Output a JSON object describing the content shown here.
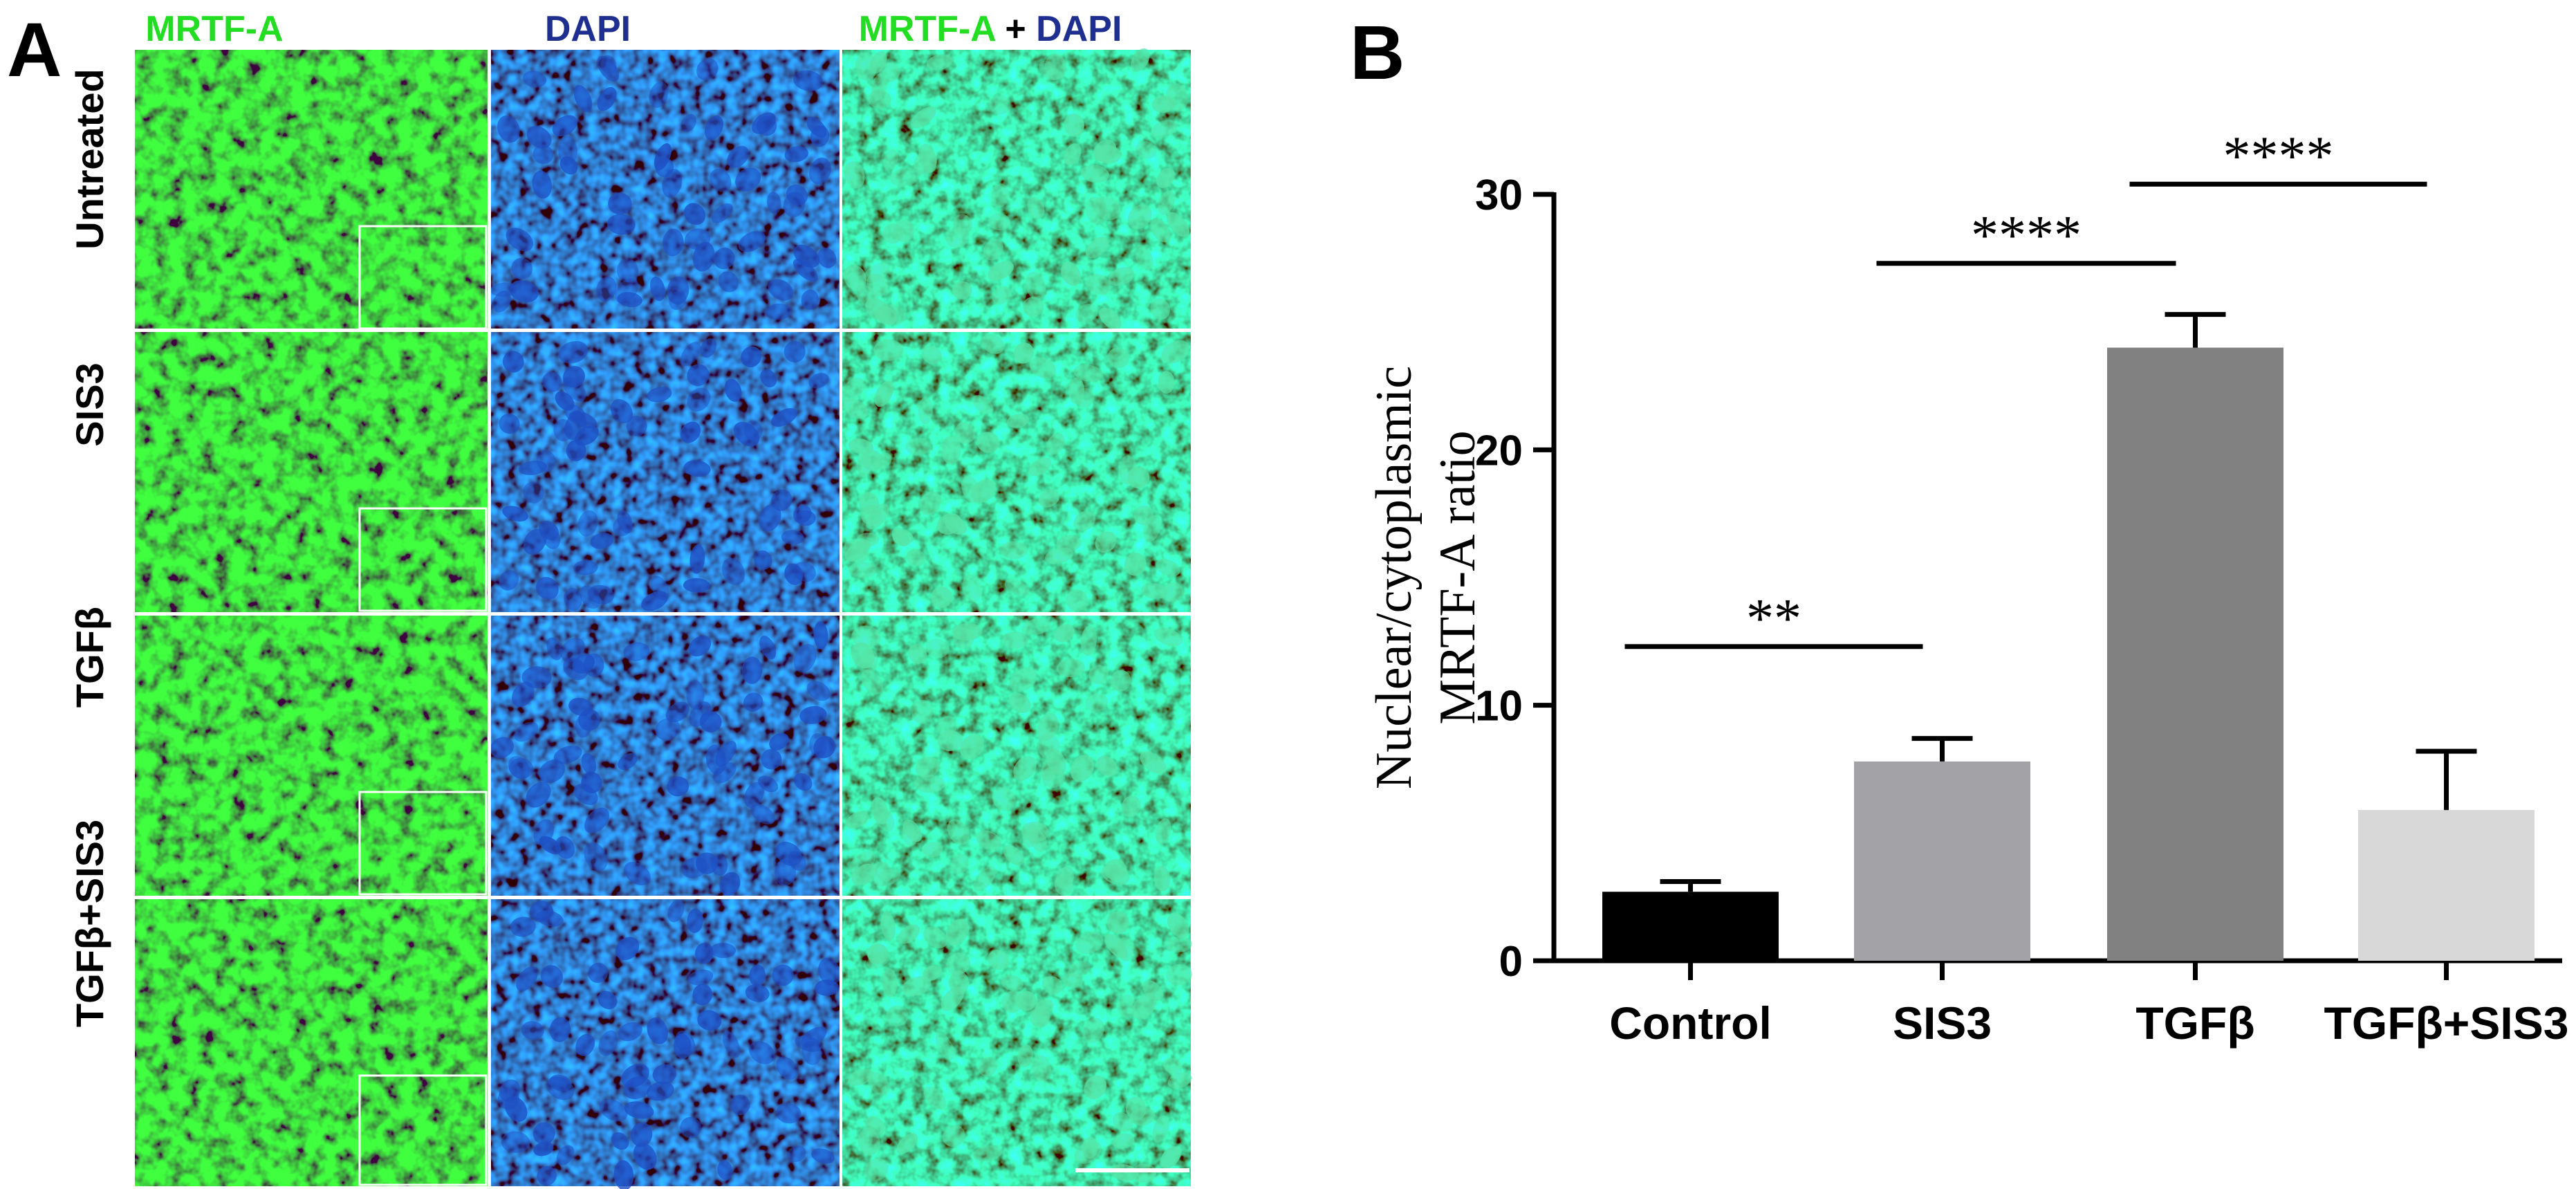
{
  "panel_a": {
    "letter": "A",
    "columns": [
      {
        "label": "MRTF-A",
        "color": "#22dd22"
      },
      {
        "label": "DAPI",
        "color": "#1f2f8f"
      }
    ],
    "merged_column": {
      "part1": "MRTF-A",
      "plus": " + ",
      "part2": "DAPI"
    },
    "rows": [
      "Untreated",
      "SIS3",
      "TGFβ",
      "TGFβ+SIS3"
    ],
    "channel_colors": {
      "green": "#19c619",
      "blue": "#1f5fd6",
      "merge": "#3fe38a"
    }
  },
  "panel_b": {
    "letter": "B",
    "chart_data": {
      "type": "bar",
      "categories": [
        "Control",
        "SIS3",
        "TGFβ",
        "TGFβ+SIS3"
      ],
      "values": [
        2.7,
        7.8,
        24.0,
        5.9
      ],
      "errors": [
        0.4,
        0.9,
        1.3,
        2.3
      ],
      "bar_colors": [
        "#000000",
        "#a3a2a7",
        "#818181",
        "#d8d8d8"
      ],
      "xlabel": "",
      "ylabel": [
        "Nuclear/cytoplasmic",
        "MRTF-A ratio"
      ],
      "ylim": [
        0,
        30
      ],
      "yticks": [
        0,
        10,
        20,
        30
      ],
      "grid": false,
      "significance": [
        {
          "from": 0,
          "to": 1,
          "y": 12.3,
          "label": "**"
        },
        {
          "from": 1,
          "to": 2,
          "y": 27.3,
          "label": "****"
        },
        {
          "from": 2,
          "to": 3,
          "y": 30.4,
          "label": "****"
        }
      ]
    }
  }
}
